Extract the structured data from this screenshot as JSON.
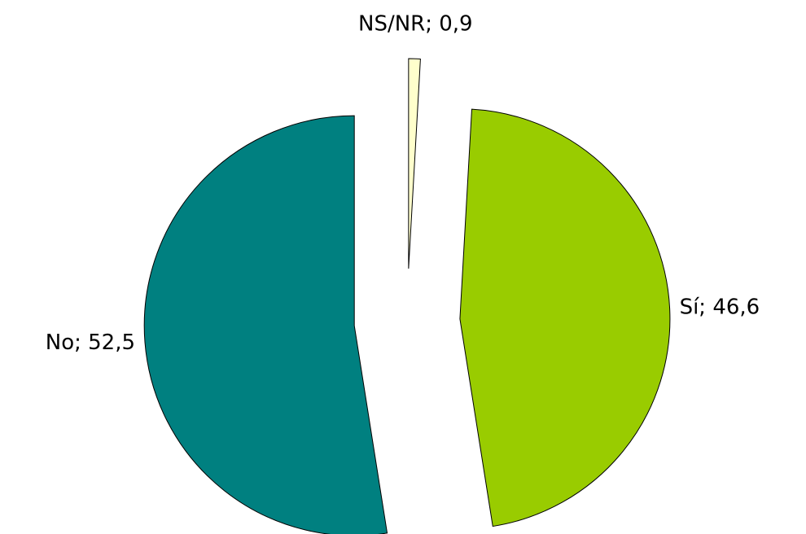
{
  "chart_data": {
    "type": "pie",
    "values": [
      0.9,
      46.6,
      52.5
    ],
    "value_labels": [
      "NS/NR; 0,9",
      "Sí; 46,6",
      "No; 52,5"
    ],
    "colors": [
      "#ffffcc",
      "#99cc00",
      "#008080"
    ]
  }
}
